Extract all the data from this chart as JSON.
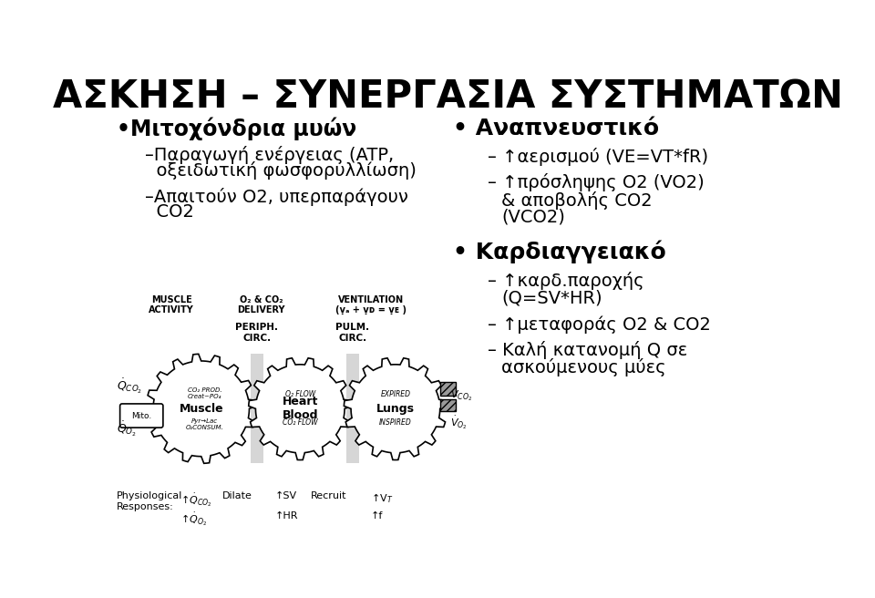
{
  "title": "ΑΣΚΗΣΗ – ΣΥΝΕΡΓΑΣΙΑ ΣΥΣΤΗΜΑΤΩΝ",
  "title_fontsize": 30,
  "title_fontweight": "bold",
  "background_color": "#ffffff",
  "text_color": "#000000",
  "left_bullet1": "•Μιτοχόνδρια μυών",
  "left_sub1_line1": "–Παραγωγή ενέργειας (ATP,",
  "left_sub1_line2": "  οξειδωτική φωσφορυλλίωση)",
  "left_sub2_line1": "–Απαιτούν O2, υπερπαράγουν",
  "left_sub2_line2": "  CO2",
  "right_bullet1": "Αναπνευστικό",
  "right_sub1": "↑αερισμού (VE=VT*fR)",
  "right_sub2_line1": "↑πρόσληψης O2 (VO2)",
  "right_sub2_line2": "& αποβολής CO2",
  "right_sub2_line3": "(VCO2)",
  "right_bullet2": "Καρδιαγγειακό",
  "right_sub3_line1": "↑καρδ.παροχής",
  "right_sub3_line2": "(Q=SV*HR)",
  "right_sub4": "↑μεταφοράς O2 & CO2",
  "right_sub5_line1": "Καλή κατανομή Q σε",
  "right_sub5_line2": "ασκούμενους μύες"
}
